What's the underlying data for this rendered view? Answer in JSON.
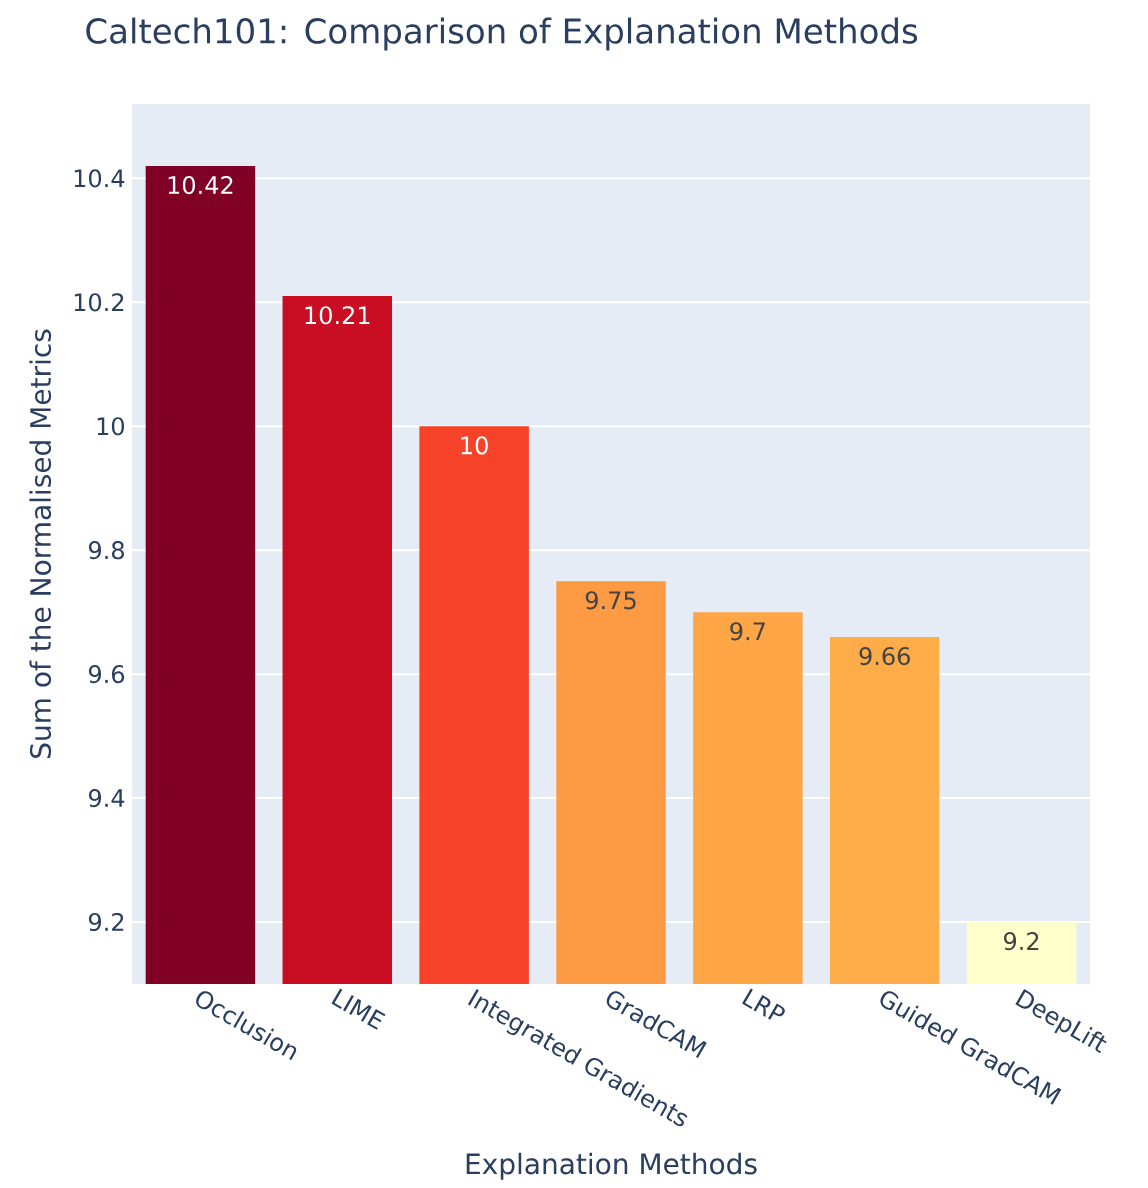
{
  "chart_data": {
    "type": "bar",
    "title": "Caltech101: Comparison of Explanation Methods",
    "xlabel": "Explanation Methods",
    "ylabel": "Sum of the Normalised Metrics",
    "categories": [
      "Occlusion",
      "LIME",
      "Integrated Gradients",
      "GradCAM",
      "LRP",
      "Guided GradCAM",
      "DeepLift"
    ],
    "values": [
      10.42,
      10.21,
      10,
      9.75,
      9.7,
      9.66,
      9.2
    ],
    "colors": [
      "#800026",
      "#c90d22",
      "#f64228",
      "#fe9a43",
      "#fea546",
      "#feac49",
      "#ffffcc"
    ],
    "ylim": [
      9.1,
      10.52
    ],
    "yticks": [
      9.2,
      9.4,
      9.6,
      9.8,
      10,
      10.2,
      10.4
    ],
    "grid": "y",
    "data_labels": true
  }
}
